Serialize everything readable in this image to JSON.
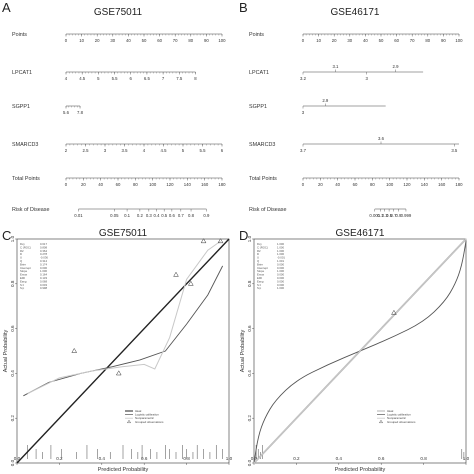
{
  "figure": {
    "panels": {
      "a": {
        "letter": "A",
        "title": "GSE75011",
        "rows": [
          {
            "label": "Points",
            "ticks": [
              "0",
              "10",
              "20",
              "30",
              "40",
              "50",
              "60",
              "70",
              "80",
              "90",
              "100"
            ],
            "range": [
              0,
              100
            ]
          },
          {
            "label": "LPCAT1",
            "ticks": [
              "4",
              "4.5",
              "5",
              "5.5",
              "6",
              "6.5",
              "7",
              "7.5",
              "8"
            ],
            "range": [
              4,
              8
            ]
          },
          {
            "label": "SGPP1",
            "ticks": [
              "5.6",
              "7.8"
            ],
            "range": [
              5.6,
              7.8
            ]
          },
          {
            "label": "SMARCD3",
            "ticks": [
              "2",
              "2.5",
              "3",
              "3.5",
              "4",
              "4.5",
              "5",
              "5.5",
              "6"
            ],
            "range": [
              2,
              6
            ]
          },
          {
            "label": "Total Points",
            "ticks": [
              "0",
              "20",
              "40",
              "60",
              "80",
              "100",
              "120",
              "140",
              "160",
              "180"
            ],
            "range": [
              0,
              180
            ]
          },
          {
            "label": "Risk of Disease",
            "ticks": [
              "0.01",
              "0.05",
              "0.1",
              "0.2",
              "0.3",
              "0.4",
              "0.5",
              "0.6",
              "0.7",
              "0.8",
              "0.9"
            ]
          }
        ]
      },
      "b": {
        "letter": "B",
        "title": "GSE46171",
        "rows": [
          {
            "label": "Points",
            "ticks": [
              "0",
              "10",
              "20",
              "30",
              "40",
              "50",
              "60",
              "70",
              "80",
              "90",
              "100"
            ],
            "range": [
              0,
              100
            ]
          },
          {
            "label": "LPCAT1",
            "ticks": [
              "3.2",
              "3",
              "3.1",
              "2.9"
            ]
          },
          {
            "label": "SGPP1",
            "ticks": [
              "3",
              "2.9"
            ]
          },
          {
            "label": "SMARCD3",
            "ticks": [
              "3.7",
              "3.6",
              "3.5"
            ]
          },
          {
            "label": "Total Points",
            "ticks": [
              "0",
              "20",
              "40",
              "60",
              "80",
              "100",
              "120",
              "140",
              "160",
              "180"
            ],
            "range": [
              0,
              180
            ]
          },
          {
            "label": "Risk of Disease",
            "ticks": [
              "0.001",
              "0.1",
              "0.3",
              "0.5",
              "0.7",
              "0.9",
              "0.999"
            ]
          }
        ]
      },
      "c": {
        "letter": "C",
        "title": "GSE75011",
        "xlabel": "Predicted Probability",
        "ylabel": "Actual Probability",
        "xticks": [
          "0.0",
          "0.2",
          "0.4",
          "0.6",
          "0.8",
          "1.0"
        ],
        "yticks": [
          "0.0",
          "0.2",
          "0.4",
          "0.6",
          "0.8",
          "1.0"
        ],
        "stats": [
          {
            "k": "Dxy",
            "v": "0.617"
          },
          {
            "k": "C (ROC)",
            "v": "0.808"
          },
          {
            "k": "R2",
            "v": "0.364"
          },
          {
            "k": "D",
            "v": "0.278"
          },
          {
            "k": "U",
            "v": "-0.036"
          },
          {
            "k": "Q",
            "v": "0.314"
          },
          {
            "k": "Brier",
            "v": "0.174"
          },
          {
            "k": "Intercept",
            "v": "0.000"
          },
          {
            "k": "Slope",
            "v": "1.000"
          },
          {
            "k": "Emax",
            "v": "0.164"
          },
          {
            "k": "E90",
            "v": "0.133"
          },
          {
            "k": "Eavg",
            "v": "0.068"
          },
          {
            "k": "S:z",
            "v": "0.003"
          },
          {
            "k": "S:p",
            "v": "0.998"
          }
        ],
        "legend": [
          "Ideal",
          "Logistic calibration",
          "Nonparametric",
          "Grouped observations"
        ]
      },
      "d": {
        "letter": "D",
        "title": "GSE46171",
        "xlabel": "Predicted Probability",
        "ylabel": "Actual Probability",
        "xticks": [
          "0.0",
          "0.2",
          "0.4",
          "0.6",
          "0.8",
          "1.0"
        ],
        "yticks": [
          "0.0",
          "0.2",
          "0.4",
          "0.6",
          "0.8",
          "1.0"
        ],
        "stats": [
          {
            "k": "Dxy",
            "v": "1.000"
          },
          {
            "k": "C (ROC)",
            "v": "1.000"
          },
          {
            "k": "R2",
            "v": "1.000"
          },
          {
            "k": "D",
            "v": "1.000"
          },
          {
            "k": "U",
            "v": "-0.001"
          },
          {
            "k": "Q",
            "v": "1.001"
          },
          {
            "k": "Brier",
            "v": "0.000"
          },
          {
            "k": "Intercept",
            "v": "0.000"
          },
          {
            "k": "Slope",
            "v": "1.000"
          },
          {
            "k": "Emax",
            "v": "0.000"
          },
          {
            "k": "E90",
            "v": "0.000"
          },
          {
            "k": "Eavg",
            "v": "0.000"
          },
          {
            "k": "S:z",
            "v": "0.000"
          },
          {
            "k": "S:p",
            "v": "1.000"
          }
        ],
        "legend": [
          "Ideal",
          "Logistic calibration",
          "Nonparametric",
          "Grouped observations"
        ]
      }
    }
  },
  "chart_data": [
    {
      "type": "line",
      "panel": "C",
      "title": "GSE75011",
      "xlabel": "Predicted Probability",
      "ylabel": "Actual Probability",
      "xlim": [
        0,
        1
      ],
      "ylim": [
        0,
        1
      ],
      "series": [
        {
          "name": "Ideal",
          "x": [
            0,
            1
          ],
          "y": [
            0,
            1
          ]
        },
        {
          "name": "Logistic calibration",
          "x": [
            0.03,
            0.15,
            0.3,
            0.45,
            0.58,
            0.7,
            0.8,
            0.9,
            0.97
          ],
          "y": [
            0.3,
            0.36,
            0.4,
            0.43,
            0.46,
            0.5,
            0.62,
            0.75,
            0.88
          ]
        },
        {
          "name": "Nonparametric",
          "x": [
            0.05,
            0.2,
            0.35,
            0.5,
            0.6,
            0.65,
            0.72,
            0.8,
            0.9,
            0.96
          ],
          "y": [
            0.31,
            0.38,
            0.41,
            0.43,
            0.44,
            0.42,
            0.56,
            0.82,
            0.95,
            0.99
          ]
        },
        {
          "name": "Grouped observations",
          "x": [
            0.27,
            0.48,
            0.75,
            0.82,
            0.88,
            0.96
          ],
          "y": [
            0.5,
            0.4,
            0.84,
            0.8,
            0.99,
            0.99
          ]
        }
      ],
      "rug": [
        0.05,
        0.09,
        0.12,
        0.16,
        0.21,
        0.28,
        0.33,
        0.38,
        0.44,
        0.5,
        0.54,
        0.57,
        0.59,
        0.63,
        0.66,
        0.7,
        0.72,
        0.75,
        0.78,
        0.8,
        0.83,
        0.85,
        0.88,
        0.91,
        0.94,
        0.97
      ]
    },
    {
      "type": "line",
      "panel": "D",
      "title": "GSE46171",
      "xlabel": "Predicted Probability",
      "ylabel": "Actual Probability",
      "xlim": [
        0,
        1
      ],
      "ylim": [
        0,
        1
      ],
      "series": [
        {
          "name": "Ideal",
          "x": [
            0,
            1
          ],
          "y": [
            0,
            1
          ]
        },
        {
          "name": "Logistic calibration",
          "x": [
            0.0,
            0.02,
            0.05,
            0.1,
            0.2,
            0.35,
            0.5,
            0.65,
            0.8,
            0.9,
            0.95,
            0.98,
            1.0
          ],
          "y": [
            0.0,
            0.12,
            0.2,
            0.28,
            0.37,
            0.44,
            0.5,
            0.56,
            0.63,
            0.72,
            0.8,
            0.88,
            0.99
          ]
        },
        {
          "name": "Nonparametric",
          "x": [
            0.0,
            1.0
          ],
          "y": [
            0.0,
            1.0
          ]
        },
        {
          "name": "Grouped observations",
          "x": [
            0.66
          ],
          "y": [
            0.67
          ]
        }
      ],
      "rug": [
        0.01,
        0.02,
        0.03,
        0.04,
        0.98,
        0.99
      ]
    }
  ]
}
